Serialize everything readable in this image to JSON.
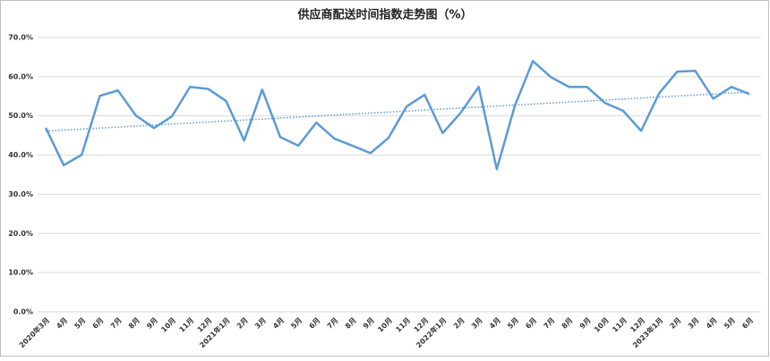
{
  "chart_data": {
    "type": "line",
    "title": "供应商配送时间指数走势图（%）",
    "categories": [
      "2020年3月",
      "4月",
      "5月",
      "6月",
      "7月",
      "8月",
      "9月",
      "10月",
      "11月",
      "12月",
      "2021年1月",
      "2月",
      "3月",
      "4月",
      "5月",
      "6月",
      "7月",
      "8月",
      "9月",
      "10月",
      "11月",
      "12月",
      "2022年1月",
      "2月",
      "3月",
      "4月",
      "5月",
      "6月",
      "7月",
      "8月",
      "9月",
      "10月",
      "11月",
      "12月",
      "2023年1月",
      "2月",
      "3月",
      "4月",
      "5月",
      "6月"
    ],
    "values": [
      47.0,
      37.4,
      40.1,
      55.1,
      56.5,
      50.1,
      46.9,
      49.9,
      57.4,
      56.9,
      53.8,
      43.7,
      56.7,
      44.6,
      42.4,
      48.3,
      44.2,
      42.4,
      40.5,
      44.4,
      52.4,
      55.4,
      45.6,
      50.8,
      57.4,
      36.4,
      52.6,
      64.0,
      59.9,
      57.4,
      57.4,
      53.3,
      51.3,
      46.2,
      55.8,
      61.3,
      61.5,
      54.4,
      57.4,
      55.6
    ],
    "color": "#5b9bd5",
    "trendline": true,
    "ylim": [
      0,
      70
    ],
    "yticks": [
      {
        "value": 0,
        "label": "0.0%"
      },
      {
        "value": 10,
        "label": "10.0%"
      },
      {
        "value": 20,
        "label": "20.0%"
      },
      {
        "value": 30,
        "label": "30.0%"
      },
      {
        "value": 40,
        "label": "40.0%"
      },
      {
        "value": 50,
        "label": "50.0%"
      },
      {
        "value": 60,
        "label": "60.0%"
      },
      {
        "value": 70,
        "label": "70.0%"
      }
    ],
    "grid": true
  }
}
